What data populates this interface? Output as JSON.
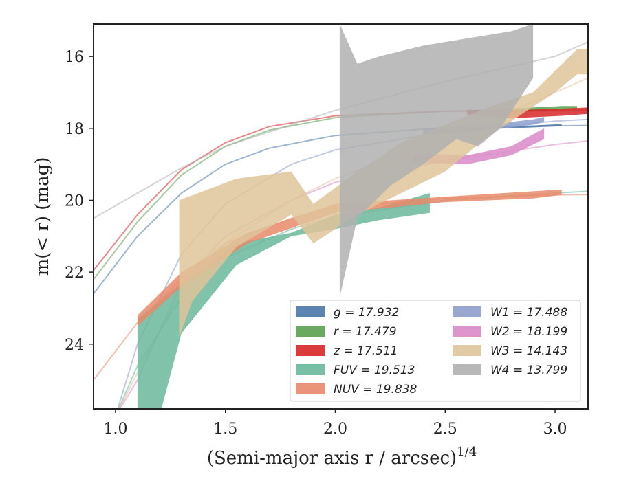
{
  "chart_data": {
    "type": "area",
    "xlabel": "(Semi-major axis r / arcsec)",
    "xlabel_exponent": "1/4",
    "ylabel": "m(< r) (mag)",
    "xlim": [
      0.9,
      3.15
    ],
    "ylim": [
      25.8,
      15.1
    ],
    "y_inverted": true,
    "xticks": [
      "1.0",
      "1.5",
      "2.0",
      "2.5",
      "3.0"
    ],
    "yticks": [
      "16",
      "18",
      "20",
      "22",
      "24"
    ],
    "legend_position": "lower-right",
    "grid": false,
    "series": [
      {
        "band": "g",
        "legend": "g = 17.932",
        "color": "#4c78a8",
        "kind": "fill",
        "upper": [
          [
            2.6,
            17.98
          ],
          [
            2.8,
            17.95
          ],
          [
            3.03,
            17.88
          ]
        ],
        "lower": [
          [
            2.6,
            18.03
          ],
          [
            2.8,
            18.0
          ],
          [
            3.03,
            17.94
          ]
        ],
        "model": [
          [
            0.9,
            22.6
          ],
          [
            1.1,
            21.0
          ],
          [
            1.3,
            19.8
          ],
          [
            1.5,
            19.0
          ],
          [
            1.7,
            18.55
          ],
          [
            2.0,
            18.2
          ],
          [
            2.5,
            17.98
          ],
          [
            3.0,
            17.93
          ],
          [
            3.15,
            17.92
          ]
        ]
      },
      {
        "band": "r",
        "legend": "r = 17.479",
        "color": "#59a14f",
        "kind": "fill",
        "upper": [
          [
            2.6,
            17.5
          ],
          [
            2.8,
            17.45
          ],
          [
            3.03,
            17.38
          ],
          [
            3.1,
            17.38
          ]
        ],
        "lower": [
          [
            2.6,
            17.58
          ],
          [
            2.8,
            17.55
          ],
          [
            3.03,
            17.48
          ],
          [
            3.1,
            17.46
          ]
        ],
        "model": [
          [
            0.9,
            22.2
          ],
          [
            1.1,
            20.6
          ],
          [
            1.3,
            19.3
          ],
          [
            1.5,
            18.5
          ],
          [
            1.7,
            18.05
          ],
          [
            2.0,
            17.7
          ],
          [
            2.5,
            17.52
          ],
          [
            3.0,
            17.48
          ],
          [
            3.15,
            17.47
          ]
        ]
      },
      {
        "band": "z",
        "legend": "z = 17.511",
        "color": "#d62728",
        "kind": "fill",
        "upper": [
          [
            2.6,
            17.48
          ],
          [
            2.8,
            17.5
          ],
          [
            3.03,
            17.45
          ],
          [
            3.15,
            17.42
          ]
        ],
        "lower": [
          [
            2.6,
            17.62
          ],
          [
            2.8,
            17.72
          ],
          [
            3.03,
            17.65
          ],
          [
            3.15,
            17.6
          ]
        ],
        "model": [
          [
            0.9,
            21.95
          ],
          [
            1.1,
            20.4
          ],
          [
            1.3,
            19.15
          ],
          [
            1.5,
            18.4
          ],
          [
            1.7,
            17.95
          ],
          [
            2.0,
            17.65
          ],
          [
            2.5,
            17.52
          ],
          [
            3.0,
            17.51
          ],
          [
            3.15,
            17.51
          ]
        ]
      },
      {
        "band": "FUV",
        "legend": "FUV = 19.513",
        "color": "#6ab89b",
        "kind": "fill",
        "upper": [
          [
            1.1,
            23.3
          ],
          [
            1.3,
            22.3
          ],
          [
            1.55,
            21.2
          ],
          [
            1.8,
            20.9
          ],
          [
            2.0,
            20.4
          ],
          [
            2.2,
            20.2
          ],
          [
            2.43,
            19.8
          ]
        ],
        "lower": [
          [
            1.1,
            26.0
          ],
          [
            1.2,
            26.0
          ],
          [
            1.3,
            23.7
          ],
          [
            1.55,
            21.8
          ],
          [
            1.8,
            21.0
          ],
          [
            2.0,
            20.8
          ],
          [
            2.2,
            20.55
          ],
          [
            2.43,
            20.35
          ]
        ],
        "model": [
          [
            1.0,
            26.0
          ],
          [
            1.1,
            24.6
          ],
          [
            1.3,
            22.7
          ],
          [
            1.5,
            21.6
          ],
          [
            1.8,
            20.8
          ],
          [
            2.0,
            20.45
          ],
          [
            2.5,
            20.0
          ],
          [
            3.0,
            19.8
          ],
          [
            3.15,
            19.75
          ]
        ]
      },
      {
        "band": "NUV",
        "legend": "NUV = 19.838",
        "color": "#e8896a",
        "kind": "fill",
        "upper": [
          [
            1.1,
            23.2
          ],
          [
            1.3,
            22.0
          ],
          [
            1.6,
            20.9
          ],
          [
            2.0,
            20.1
          ],
          [
            2.5,
            19.9
          ],
          [
            2.9,
            19.75
          ],
          [
            3.03,
            19.7
          ]
        ],
        "lower": [
          [
            1.1,
            23.5
          ],
          [
            1.3,
            22.4
          ],
          [
            1.6,
            21.2
          ],
          [
            2.0,
            20.35
          ],
          [
            2.5,
            20.05
          ],
          [
            2.9,
            19.95
          ],
          [
            3.03,
            19.85
          ]
        ],
        "model": [
          [
            0.9,
            25.0
          ],
          [
            1.1,
            23.4
          ],
          [
            1.3,
            22.2
          ],
          [
            1.5,
            21.2
          ],
          [
            1.8,
            20.5
          ],
          [
            2.0,
            20.2
          ],
          [
            2.5,
            19.95
          ],
          [
            3.0,
            19.85
          ],
          [
            3.15,
            19.84
          ]
        ]
      },
      {
        "band": "W1",
        "legend": "W1 = 17.488",
        "color": "#8f9fcc",
        "kind": "fill",
        "upper": [
          [
            2.4,
            18.0
          ],
          [
            2.7,
            17.9
          ],
          [
            2.9,
            17.75
          ],
          [
            2.95,
            17.68
          ]
        ],
        "lower": [
          [
            2.4,
            18.2
          ],
          [
            2.7,
            18.05
          ],
          [
            2.9,
            17.9
          ],
          [
            2.95,
            17.82
          ]
        ],
        "model": [
          [
            1.0,
            26.0
          ],
          [
            1.1,
            24.0
          ],
          [
            1.3,
            21.5
          ],
          [
            1.5,
            20.1
          ],
          [
            1.8,
            19.0
          ],
          [
            2.0,
            18.6
          ],
          [
            2.5,
            18.1
          ],
          [
            3.0,
            17.8
          ],
          [
            3.15,
            17.75
          ]
        ]
      },
      {
        "band": "W2",
        "legend": "W2 = 18.199",
        "color": "#d98ac7",
        "kind": "fill",
        "upper": [
          [
            2.35,
            18.7
          ],
          [
            2.6,
            18.75
          ],
          [
            2.8,
            18.5
          ],
          [
            2.95,
            18.0
          ]
        ],
        "lower": [
          [
            2.35,
            18.95
          ],
          [
            2.6,
            19.0
          ],
          [
            2.8,
            18.75
          ],
          [
            2.95,
            18.3
          ]
        ],
        "model": [
          [
            1.0,
            26.0
          ],
          [
            1.1,
            25.0
          ],
          [
            1.3,
            22.3
          ],
          [
            1.5,
            21.0
          ],
          [
            1.8,
            20.0
          ],
          [
            2.0,
            19.5
          ],
          [
            2.5,
            18.9
          ],
          [
            3.0,
            18.45
          ],
          [
            3.15,
            18.35
          ]
        ]
      },
      {
        "band": "W3",
        "legend": "W3 = 14.143",
        "color": "#dfc49a",
        "kind": "fill",
        "upper": [
          [
            1.29,
            20.0
          ],
          [
            1.55,
            19.4
          ],
          [
            1.8,
            19.2
          ],
          [
            1.9,
            20.1
          ],
          [
            2.1,
            19.2
          ],
          [
            2.3,
            18.4
          ],
          [
            2.5,
            17.9
          ],
          [
            2.7,
            17.4
          ],
          [
            2.9,
            17.0
          ],
          [
            3.0,
            16.4
          ],
          [
            3.1,
            15.8
          ],
          [
            3.15,
            15.8
          ]
        ],
        "lower": [
          [
            1.29,
            23.8
          ],
          [
            1.35,
            22.8
          ],
          [
            1.55,
            21.3
          ],
          [
            1.8,
            20.4
          ],
          [
            1.9,
            21.2
          ],
          [
            2.1,
            20.4
          ],
          [
            2.3,
            19.8
          ],
          [
            2.5,
            19.2
          ],
          [
            2.7,
            18.2
          ],
          [
            2.9,
            17.4
          ],
          [
            3.0,
            17.0
          ],
          [
            3.1,
            16.5
          ],
          [
            3.15,
            16.5
          ]
        ],
        "model": [
          [
            1.0,
            26.0
          ],
          [
            1.1,
            24.8
          ],
          [
            1.3,
            22.5
          ],
          [
            1.5,
            21.2
          ],
          [
            1.8,
            20.0
          ],
          [
            2.0,
            19.4
          ],
          [
            2.5,
            18.3
          ],
          [
            3.0,
            17.0
          ],
          [
            3.15,
            16.6
          ]
        ]
      },
      {
        "band": "W4",
        "legend": "W4 = 13.799",
        "color": "#b0b0b0",
        "kind": "fill",
        "upper": [
          [
            2.02,
            15.1
          ],
          [
            2.1,
            16.2
          ],
          [
            2.2,
            16.0
          ],
          [
            2.4,
            15.7
          ],
          [
            2.6,
            15.5
          ],
          [
            2.8,
            15.3
          ],
          [
            2.9,
            15.1
          ]
        ],
        "lower": [
          [
            2.02,
            22.7
          ],
          [
            2.1,
            20.5
          ],
          [
            2.25,
            19.6
          ],
          [
            2.4,
            19.0
          ],
          [
            2.55,
            18.3
          ],
          [
            2.65,
            18.5
          ],
          [
            2.75,
            18.0
          ],
          [
            2.9,
            16.6
          ]
        ],
        "model": [
          [
            0.9,
            20.5
          ],
          [
            1.1,
            19.8
          ],
          [
            1.3,
            19.1
          ],
          [
            1.5,
            18.5
          ],
          [
            1.8,
            17.9
          ],
          [
            2.0,
            17.5
          ],
          [
            2.5,
            16.7
          ],
          [
            3.0,
            16.0
          ],
          [
            3.15,
            15.6
          ]
        ]
      }
    ]
  }
}
